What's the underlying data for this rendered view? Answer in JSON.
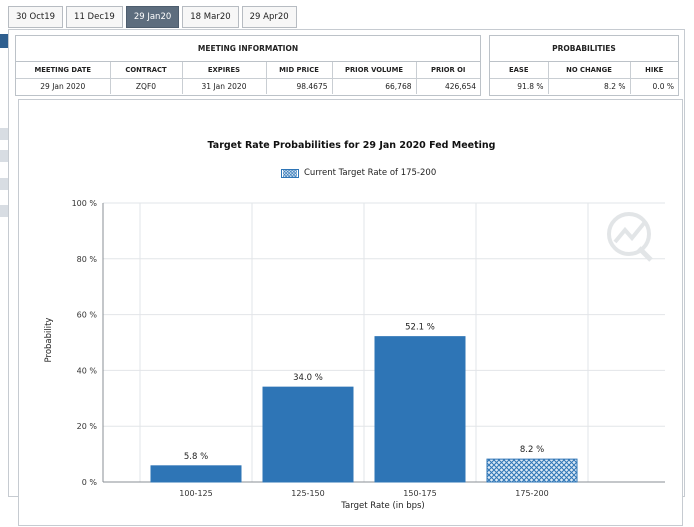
{
  "tabs": [
    {
      "label": "30 Oct19",
      "active": false
    },
    {
      "label": "11 Dec19",
      "active": false
    },
    {
      "label": "29 Jan20",
      "active": true
    },
    {
      "label": "18 Mar20",
      "active": false
    },
    {
      "label": "29 Apr20",
      "active": false
    }
  ],
  "meeting_info": {
    "title": "MEETING INFORMATION",
    "headers": [
      "MEETING DATE",
      "CONTRACT",
      "EXPIRES",
      "MID PRICE",
      "PRIOR VOLUME",
      "PRIOR OI"
    ],
    "values": [
      "29 Jan 2020",
      "ZQF0",
      "31 Jan 2020",
      "98.4675",
      "66,768",
      "426,654"
    ]
  },
  "probabilities": {
    "title": "PROBABILITIES",
    "headers": [
      "EASE",
      "NO CHANGE",
      "HIKE"
    ],
    "values": [
      "91.8 %",
      "8.2 %",
      "0.0 %"
    ]
  },
  "colors": {
    "bar": "#2e75b6",
    "current_bar_pattern": "#2e75b6",
    "active_tab": "#5d6d7e"
  },
  "chart_data": {
    "type": "bar",
    "title": "Target Rate Probabilities for 29 Jan 2020 Fed Meeting",
    "legend": [
      "Current Target Rate of 175-200"
    ],
    "categories": [
      "100-125",
      "125-150",
      "150-175",
      "175-200"
    ],
    "values": [
      5.8,
      34.0,
      52.1,
      8.2
    ],
    "data_labels": [
      "5.8 %",
      "34.0 %",
      "52.1 %",
      "8.2 %"
    ],
    "current_category": "175-200",
    "xlabel": "Target Rate (in bps)",
    "ylabel": "Probability",
    "ylim": [
      0,
      100
    ],
    "yticks": [
      0,
      20,
      40,
      60,
      80,
      100
    ],
    "ytick_labels": [
      "0 %",
      "20 %",
      "40 %",
      "60 %",
      "80 %",
      "100 %"
    ],
    "grid": true
  }
}
